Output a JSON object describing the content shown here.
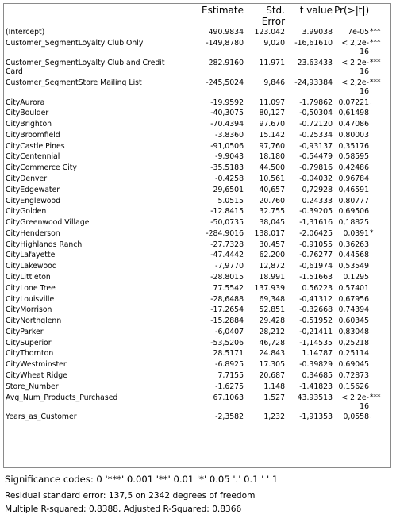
{
  "table": {
    "headers": {
      "term": "",
      "estimate": "Estimate",
      "std_error_line1": "Std.",
      "std_error_line2": "Error",
      "t_value": "t value",
      "p_value": "Pr(>|t|)"
    },
    "rows": [
      {
        "term": "(Intercept)",
        "estimate": "490.9834",
        "std_error": "123.042",
        "t_value": "3.99038",
        "p_value": "7e-05",
        "sig": "***"
      },
      {
        "term": "Customer_SegmentLoyalty Club Only",
        "estimate": "-149,8780",
        "std_error": "9,020",
        "t_value": "-16,61610",
        "p_value": "< 2,2e-16",
        "sig": "***"
      },
      {
        "term": "Customer_SegmentLoyalty Club and Credit Card",
        "estimate": "282.9160",
        "std_error": "11.971",
        "t_value": "23.63433",
        "p_value": "< 2.2e-16",
        "sig": "***"
      },
      {
        "term": "Customer_SegmentStore Mailing List",
        "estimate": "-245,5024",
        "std_error": "9,846",
        "t_value": "-24,93384",
        "p_value": "< 2,2e-16",
        "sig": "***"
      },
      {
        "term": "CityAurora",
        "estimate": "-19.9592",
        "std_error": "11.097",
        "t_value": "-1.79862",
        "p_value": "0.07221",
        "sig": "."
      },
      {
        "term": "CityBoulder",
        "estimate": "-40,3075",
        "std_error": "80,127",
        "t_value": "-0,50304",
        "p_value": "0,61498",
        "sig": ""
      },
      {
        "term": "CityBrighton",
        "estimate": "-70.4394",
        "std_error": "97.670",
        "t_value": "-0.72120",
        "p_value": "0.47086",
        "sig": ""
      },
      {
        "term": "CityBroomfield",
        "estimate": "-3.8360",
        "std_error": "15.142",
        "t_value": "-0.25334",
        "p_value": "0.80003",
        "sig": ""
      },
      {
        "term": "CityCastle Pines",
        "estimate": "-91,0506",
        "std_error": "97,760",
        "t_value": "-0,93137",
        "p_value": "0,35176",
        "sig": ""
      },
      {
        "term": "CityCentennial",
        "estimate": "-9,9043",
        "std_error": "18,180",
        "t_value": "-0,54479",
        "p_value": "0,58595",
        "sig": ""
      },
      {
        "term": "CityCommerce City",
        "estimate": "-35.5183",
        "std_error": "44.500",
        "t_value": "-0.79816",
        "p_value": "0.42486",
        "sig": ""
      },
      {
        "term": "CityDenver",
        "estimate": "-0.4258",
        "std_error": "10.561",
        "t_value": "-0.04032",
        "p_value": "0.96784",
        "sig": ""
      },
      {
        "term": "CityEdgewater",
        "estimate": "29,6501",
        "std_error": "40,657",
        "t_value": "0,72928",
        "p_value": "0,46591",
        "sig": ""
      },
      {
        "term": "CityEnglewood",
        "estimate": "5.0515",
        "std_error": "20.760",
        "t_value": "0.24333",
        "p_value": "0.80777",
        "sig": ""
      },
      {
        "term": "CityGolden",
        "estimate": "-12.8415",
        "std_error": "32.755",
        "t_value": "-0.39205",
        "p_value": "0.69506",
        "sig": ""
      },
      {
        "term": "CityGreenwood Village",
        "estimate": "-50,0735",
        "std_error": "38,045",
        "t_value": "-1,31616",
        "p_value": "0,18825",
        "sig": ""
      },
      {
        "term": "CityHenderson",
        "estimate": "-284,9016",
        "std_error": "138,017",
        "t_value": "-2,06425",
        "p_value": "0,0391",
        "sig": "*"
      },
      {
        "term": "CityHighlands Ranch",
        "estimate": "-27.7328",
        "std_error": "30.457",
        "t_value": "-0.91055",
        "p_value": "0.36263",
        "sig": ""
      },
      {
        "term": "CityLafayette",
        "estimate": "-47.4442",
        "std_error": "62.200",
        "t_value": "-0.76277",
        "p_value": "0.44568",
        "sig": ""
      },
      {
        "term": "CityLakewood",
        "estimate": "-7,9770",
        "std_error": "12,872",
        "t_value": "-0,61974",
        "p_value": "0,53549",
        "sig": ""
      },
      {
        "term": "CityLittleton",
        "estimate": "-28.8015",
        "std_error": "18.991",
        "t_value": "-1.51663",
        "p_value": "0.1295",
        "sig": ""
      },
      {
        "term": "CityLone Tree",
        "estimate": "77.5542",
        "std_error": "137.939",
        "t_value": "0.56223",
        "p_value": "0.57401",
        "sig": ""
      },
      {
        "term": "CityLouisville",
        "estimate": "-28,6488",
        "std_error": "69,348",
        "t_value": "-0,41312",
        "p_value": "0,67956",
        "sig": ""
      },
      {
        "term": "CityMorrison",
        "estimate": "-17.2654",
        "std_error": "52.851",
        "t_value": "-0.32668",
        "p_value": "0.74394",
        "sig": ""
      },
      {
        "term": "CityNorthglenn",
        "estimate": "-15.2884",
        "std_error": "29.428",
        "t_value": "-0.51952",
        "p_value": "0.60345",
        "sig": ""
      },
      {
        "term": "CityParker",
        "estimate": "-6,0407",
        "std_error": "28,212",
        "t_value": "-0,21411",
        "p_value": "0,83048",
        "sig": ""
      },
      {
        "term": "CitySuperior",
        "estimate": "-53,5206",
        "std_error": "46,728",
        "t_value": "-1,14535",
        "p_value": "0,25218",
        "sig": ""
      },
      {
        "term": "CityThornton",
        "estimate": "28.5171",
        "std_error": "24.843",
        "t_value": "1.14787",
        "p_value": "0.25114",
        "sig": ""
      },
      {
        "term": "CityWestminster",
        "estimate": "-6.8925",
        "std_error": "17.305",
        "t_value": "-0.39829",
        "p_value": "0.69045",
        "sig": ""
      },
      {
        "term": "CityWheat Ridge",
        "estimate": "7,7155",
        "std_error": "20,687",
        "t_value": "0,34685",
        "p_value": "0,72873",
        "sig": ""
      },
      {
        "term": "Store_Number",
        "estimate": "-1.6275",
        "std_error": "1.148",
        "t_value": "-1.41823",
        "p_value": "0.15626",
        "sig": ""
      },
      {
        "term": "Avg_Num_Products_Purchased",
        "estimate": "67.1063",
        "std_error": "1.527",
        "t_value": "43.93513",
        "p_value": "< 2.2e-16",
        "sig": "***"
      },
      {
        "term": "Years_as_Customer",
        "estimate": "-2,3582",
        "std_error": "1,232",
        "t_value": "-1,91353",
        "p_value": "0,0558",
        "sig": "."
      }
    ]
  },
  "footer": {
    "significance": "Significance codes: 0 '***' 0.001 '**' 0.01 '*' 0.05 '.' 0.1 ' ' 1",
    "residual_se": "Residual standard error: 137,5 on 2342 degrees of freedom",
    "r_squared": "Multiple R-squared: 0.8388, Adjusted R-Squared: 0.8366"
  }
}
